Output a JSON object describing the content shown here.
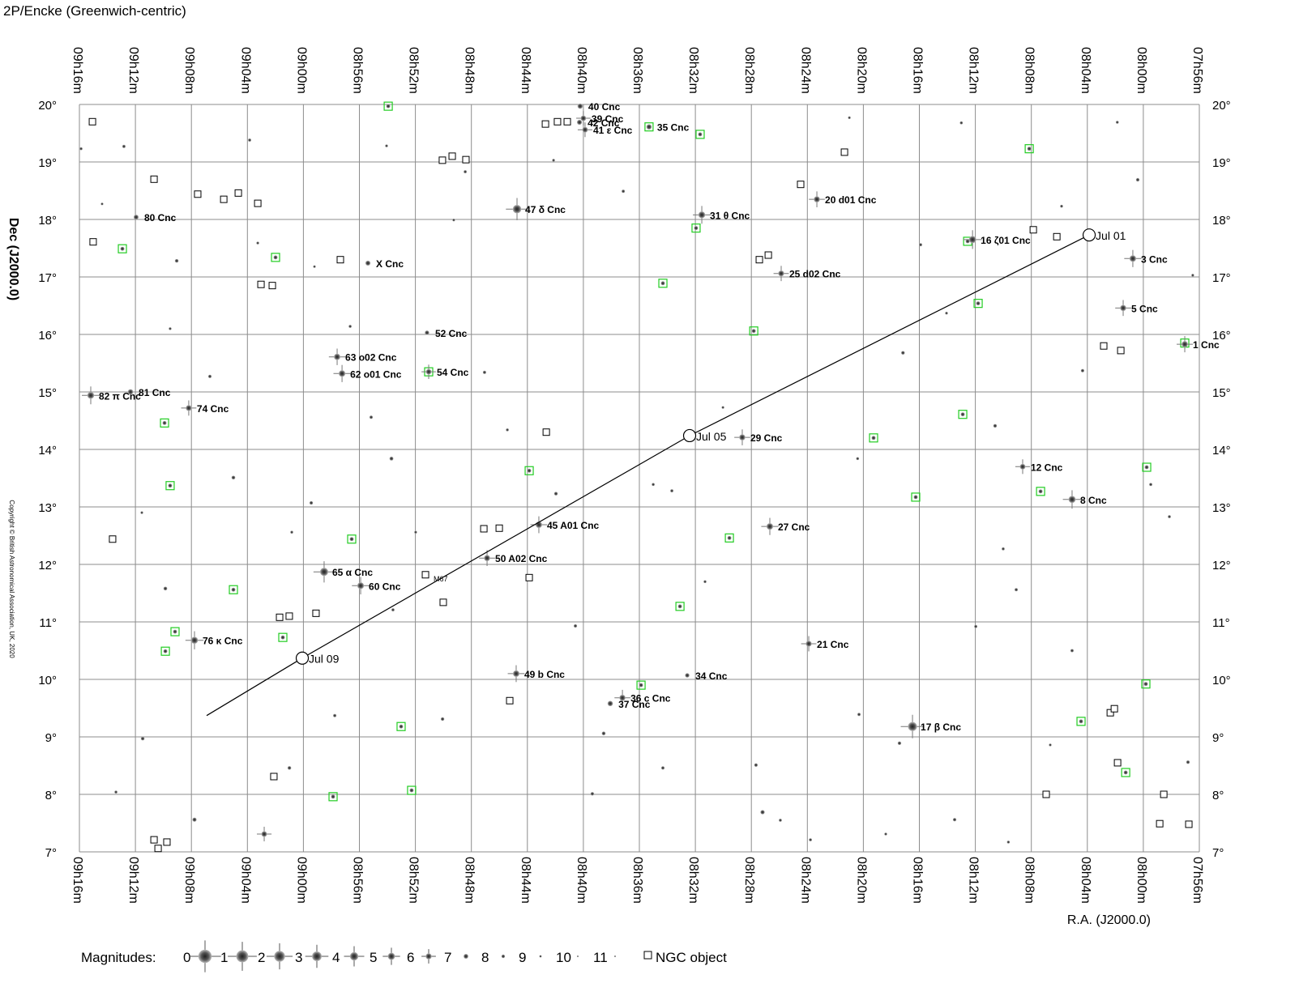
{
  "chart_data": {
    "type": "starchart",
    "title": "2P/Encke  (Greenwich-centric)",
    "x_label": "R.A. (J2000.0)",
    "y_label": "Dec (J2000.0)",
    "copyright": "Copyright © British Astronomical Association, UK, 2020",
    "xlim": [
      556,
      476
    ],
    "ylim": [
      7,
      20
    ],
    "grid": true,
    "xticks": [
      {
        "value": 556,
        "label": "09h16m"
      },
      {
        "value": 552,
        "label": "09h12m"
      },
      {
        "value": 548,
        "label": "09h08m"
      },
      {
        "value": 544,
        "label": "09h04m"
      },
      {
        "value": 540,
        "label": "09h00m"
      },
      {
        "value": 536,
        "label": "08h56m"
      },
      {
        "value": 532,
        "label": "08h52m"
      },
      {
        "value": 528,
        "label": "08h48m"
      },
      {
        "value": 524,
        "label": "08h44m"
      },
      {
        "value": 520,
        "label": "08h40m"
      },
      {
        "value": 516,
        "label": "08h36m"
      },
      {
        "value": 512,
        "label": "08h32m"
      },
      {
        "value": 508,
        "label": "08h28m"
      },
      {
        "value": 504,
        "label": "08h24m"
      },
      {
        "value": 500,
        "label": "08h20m"
      },
      {
        "value": 496,
        "label": "08h16m"
      },
      {
        "value": 492,
        "label": "08h12m"
      },
      {
        "value": 488,
        "label": "08h08m"
      },
      {
        "value": 484,
        "label": "08h04m"
      },
      {
        "value": 480,
        "label": "08h00m"
      },
      {
        "value": 476,
        "label": "07h56m"
      }
    ],
    "yticks": [
      {
        "value": 20,
        "label": "20°"
      },
      {
        "value": 19,
        "label": "19°"
      },
      {
        "value": 18,
        "label": "18°"
      },
      {
        "value": 17,
        "label": "17°"
      },
      {
        "value": 16,
        "label": "16°"
      },
      {
        "value": 15,
        "label": "15°"
      },
      {
        "value": 14,
        "label": "14°"
      },
      {
        "value": 13,
        "label": "13°"
      },
      {
        "value": 12,
        "label": "12°"
      },
      {
        "value": 11,
        "label": "11°"
      },
      {
        "value": 10,
        "label": "10°"
      },
      {
        "value": 9,
        "label": "9°"
      },
      {
        "value": 8,
        "label": "8°"
      },
      {
        "value": 7,
        "label": "7°"
      }
    ],
    "stars": {
      "names": [
        "80 Cnc",
        "X Cnc",
        "47 δ Cnc",
        "40 Cnc",
        "39 Cnc",
        "42 Cnc",
        "41 ε Cnc",
        "35 Cnc",
        "31 θ Cnc",
        "20 d01 Cnc",
        "16 ζ01 Cnc",
        "3 Cnc",
        "5 Cnc",
        "1 Cnc",
        "25 d02 Cnc",
        "52 Cnc",
        "63 o02 Cnc",
        "62 o01 Cnc",
        "54 Cnc",
        "82 π Cnc",
        "81 Cnc",
        "74 Cnc",
        "29 Cnc",
        "12 Cnc",
        "8 Cnc",
        "45 A01 Cnc",
        "27 Cnc",
        "50 A02 Cnc",
        "65 α Cnc",
        "60 Cnc",
        "76 κ Cnc",
        "21 Cnc",
        "49 b Cnc",
        "34 Cnc",
        "36 c Cnc",
        "37 Cnc",
        "17 β Cnc"
      ],
      "ra": [
        551.95,
        535.39,
        524.74,
        520.23,
        520.0,
        520.28,
        519.88,
        515.31,
        511.54,
        503.32,
        492.2,
        480.75,
        481.44,
        477.04,
        505.87,
        531.17,
        537.59,
        537.24,
        531.05,
        555.19,
        552.35,
        548.19,
        508.65,
        488.62,
        485.09,
        523.18,
        506.68,
        526.88,
        538.52,
        535.91,
        547.78,
        503.9,
        524.8,
        512.58,
        517.21,
        518.08,
        496.49
      ],
      "dec": [
        18.04,
        17.24,
        18.18,
        19.97,
        19.76,
        19.69,
        19.56,
        19.61,
        18.08,
        18.35,
        17.65,
        17.32,
        16.46,
        15.83,
        17.06,
        16.03,
        15.61,
        15.32,
        15.35,
        14.94,
        15.0,
        14.72,
        14.21,
        13.7,
        13.13,
        12.69,
        12.66,
        12.11,
        11.87,
        11.63,
        10.68,
        10.62,
        10.1,
        10.07,
        9.68,
        9.58,
        9.18
      ],
      "mag": [
        6.9,
        6.8,
        3.9,
        6.6,
        6.4,
        6.8,
        6.3,
        6.6,
        5.3,
        5.9,
        5.0,
        5.5,
        5.9,
        5.8,
        6.1,
        7.3,
        5.7,
        5.5,
        6.4,
        5.3,
        6.5,
        6.1,
        5.9,
        6.3,
        5.1,
        5.6,
        5.5,
        5.9,
        4.2,
        5.4,
        5.2,
        6.1,
        5.6,
        7.3,
        5.9,
        6.5,
        3.5
      ]
    },
    "field_stars": {
      "ra": [
        555.88,
        554.38,
        552.82,
        549.05,
        549.52,
        546.68,
        551.54,
        549.86,
        551.48,
        553.39,
        543.84,
        543.26,
        545.0,
        540.83,
        539.44,
        537.76,
        541.0,
        539.21,
        536.66,
        535.16,
        533.71,
        531.98,
        533.6,
        530.06,
        529.26,
        527.06,
        525.43,
        521.96,
        520.57,
        518.55,
        519.36,
        522.13,
        517.15,
        515.01,
        513.68,
        514.32,
        511.31,
        510.03,
        507.2,
        505.93,
        500.41,
        497.17,
        500.31,
        497.42,
        495.91,
        494.06,
        490.59,
        490.01,
        489.08,
        485.84,
        484.34,
        480.4,
        476.47,
        479.47,
        478.14,
        476.81,
        485.09,
        486.65,
        491.97,
        493.48,
        489.64,
        498.4,
        503.78,
        507.67,
        501.0,
        493.0,
        481.86,
        528.44,
        534.06,
        547.78,
        542.8
      ],
      "dec": [
        19.23,
        18.27,
        19.27,
        17.28,
        16.1,
        15.27,
        12.9,
        11.58,
        8.97,
        8.04,
        19.38,
        17.59,
        13.51,
        12.56,
        13.07,
        9.37,
        8.46,
        17.18,
        16.14,
        14.56,
        13.84,
        12.56,
        11.21,
        9.31,
        17.99,
        15.34,
        14.34,
        13.23,
        10.93,
        9.06,
        8.01,
        19.03,
        18.49,
        13.39,
        13.28,
        8.46,
        11.7,
        14.73,
        7.69,
        7.55,
        13.84,
        15.68,
        9.39,
        8.89,
        17.56,
        16.37,
        14.41,
        12.27,
        11.56,
        18.23,
        15.37,
        18.69,
        17.03,
        13.39,
        12.83,
        8.56,
        10.5,
        8.86,
        10.92,
        7.56,
        7.17,
        7.31,
        7.21,
        8.51,
        19.77,
        19.68,
        19.69,
        18.83,
        19.28,
        7.56,
        7.31
      ],
      "mag": [
        8.5,
        8.8,
        8.2,
        7.9,
        8.6,
        8.1,
        8.7,
        7.8,
        7.9,
        8.4,
        8.3,
        8.6,
        7.8,
        8.5,
        8.0,
        8.2,
        7.9,
        8.8,
        8.4,
        8.1,
        7.7,
        8.6,
        8.3,
        8.0,
        8.7,
        8.2,
        8.5,
        7.9,
        8.1,
        7.8,
        8.0,
        8.6,
        8.2,
        8.4,
        8.3,
        8.1,
        8.5,
        8.7,
        7.4,
        8.4,
        8.5,
        7.9,
        8.2,
        8.0,
        8.3,
        8.6,
        7.9,
        8.4,
        8.2,
        8.5,
        8.1,
        8.0,
        8.6,
        8.3,
        8.4,
        8.0,
        8.2,
        8.7,
        8.3,
        8.1,
        8.5,
        8.6,
        8.4,
        8.0,
        8.7,
        8.4,
        8.5,
        8.3,
        8.6,
        7.5,
        6.3
      ]
    },
    "ngc_objects": {
      "ra": [
        555.07,
        550.67,
        547.55,
        545.69,
        544.65,
        543.26,
        555.02,
        537.36,
        543.03,
        542.22,
        530.07,
        529.37,
        528.39,
        522.71,
        521.85,
        521.15,
        501.35,
        504.48,
        507.43,
        506.79,
        522.65,
        527.11,
        526.01,
        523.87,
        530.01,
        541.7,
        541.01,
        539.1,
        525.26,
        542.11,
        550.67,
        549.75,
        550.38,
        553.63,
        487.86,
        486.18,
        482.83,
        481.61,
        482.36,
        482.07,
        481.84,
        486.94,
        478.54,
        478.83,
        476.75
      ],
      "dec": [
        19.7,
        18.7,
        18.44,
        18.35,
        18.46,
        18.28,
        17.61,
        17.3,
        16.87,
        16.85,
        19.03,
        19.1,
        19.04,
        19.66,
        19.7,
        19.7,
        19.17,
        18.61,
        17.3,
        17.38,
        14.3,
        12.62,
        12.63,
        11.77,
        11.34,
        11.08,
        11.1,
        11.15,
        9.63,
        8.31,
        7.21,
        7.17,
        7.06,
        12.44,
        17.82,
        17.7,
        15.8,
        15.72,
        9.42,
        9.49,
        8.55,
        8.0,
        8.0,
        7.49,
        7.48
      ]
    },
    "deep_sky": {
      "names": [
        "M67"
      ],
      "ra": [
        531.28
      ],
      "dec": [
        11.82
      ]
    },
    "highlighted": {
      "color": "#22cc22",
      "ra": [
        533.94,
        515.31,
        511.66,
        488.15,
        552.93,
        541.99,
        511.95,
        514.32,
        491.8,
        507.83,
        477.04,
        531.05,
        549.92,
        492.9,
        499.27,
        523.87,
        549.52,
        479.76,
        496.26,
        487.34,
        536.55,
        509.57,
        545.0,
        513.1,
        549.17,
        541.47,
        549.86,
        515.88,
        479.82,
        484.45,
        533.02,
        532.27,
        537.88,
        481.26,
        492.55
      ],
      "dec": [
        19.97,
        19.61,
        19.48,
        19.23,
        17.49,
        17.34,
        17.85,
        16.89,
        16.54,
        16.06,
        15.85,
        15.35,
        14.46,
        14.61,
        14.2,
        13.63,
        13.37,
        13.69,
        13.17,
        13.27,
        12.44,
        12.46,
        11.56,
        11.27,
        10.83,
        10.73,
        10.49,
        9.9,
        9.92,
        9.27,
        9.18,
        8.07,
        7.96,
        8.38,
        17.62
      ]
    },
    "track": {
      "labels": [
        "Jul 01",
        "Jul 05",
        "Jul 09",
        null
      ],
      "ra": [
        483.87,
        512.41,
        540.08,
        546.91
      ],
      "dec": [
        17.73,
        14.24,
        10.37,
        9.37
      ]
    },
    "legend": {
      "title": "Magnitudes:",
      "magnitudes": [
        0,
        1,
        2,
        3,
        4,
        5,
        6,
        7,
        8,
        9,
        10,
        11
      ],
      "ngc_label": "NGC object"
    }
  }
}
